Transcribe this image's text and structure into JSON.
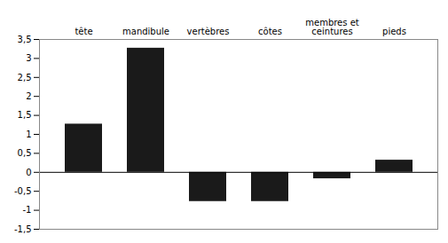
{
  "chart_data": {
    "type": "bar",
    "categories": [
      "tête",
      "mandibule",
      "vertèbres",
      "côtes",
      "membres et\nceintures",
      "pieds"
    ],
    "values": [
      1.27,
      3.27,
      -0.77,
      -0.77,
      -0.17,
      0.32
    ],
    "color": "#1a1a1a",
    "ylim": [
      -1.5,
      3.5
    ],
    "yticks": [
      {
        "value": -1.5,
        "label": "-1,5"
      },
      -1,
      {
        "value": -0.5,
        "label": "-0,5"
      },
      0,
      {
        "value": 0.5,
        "label": "0,5"
      },
      1,
      {
        "value": 1.5,
        "label": "1,5"
      },
      2,
      {
        "value": 2.5,
        "label": "2,5"
      },
      3,
      {
        "value": 3.5,
        "label": "3,5"
      }
    ],
    "grid": false
  }
}
